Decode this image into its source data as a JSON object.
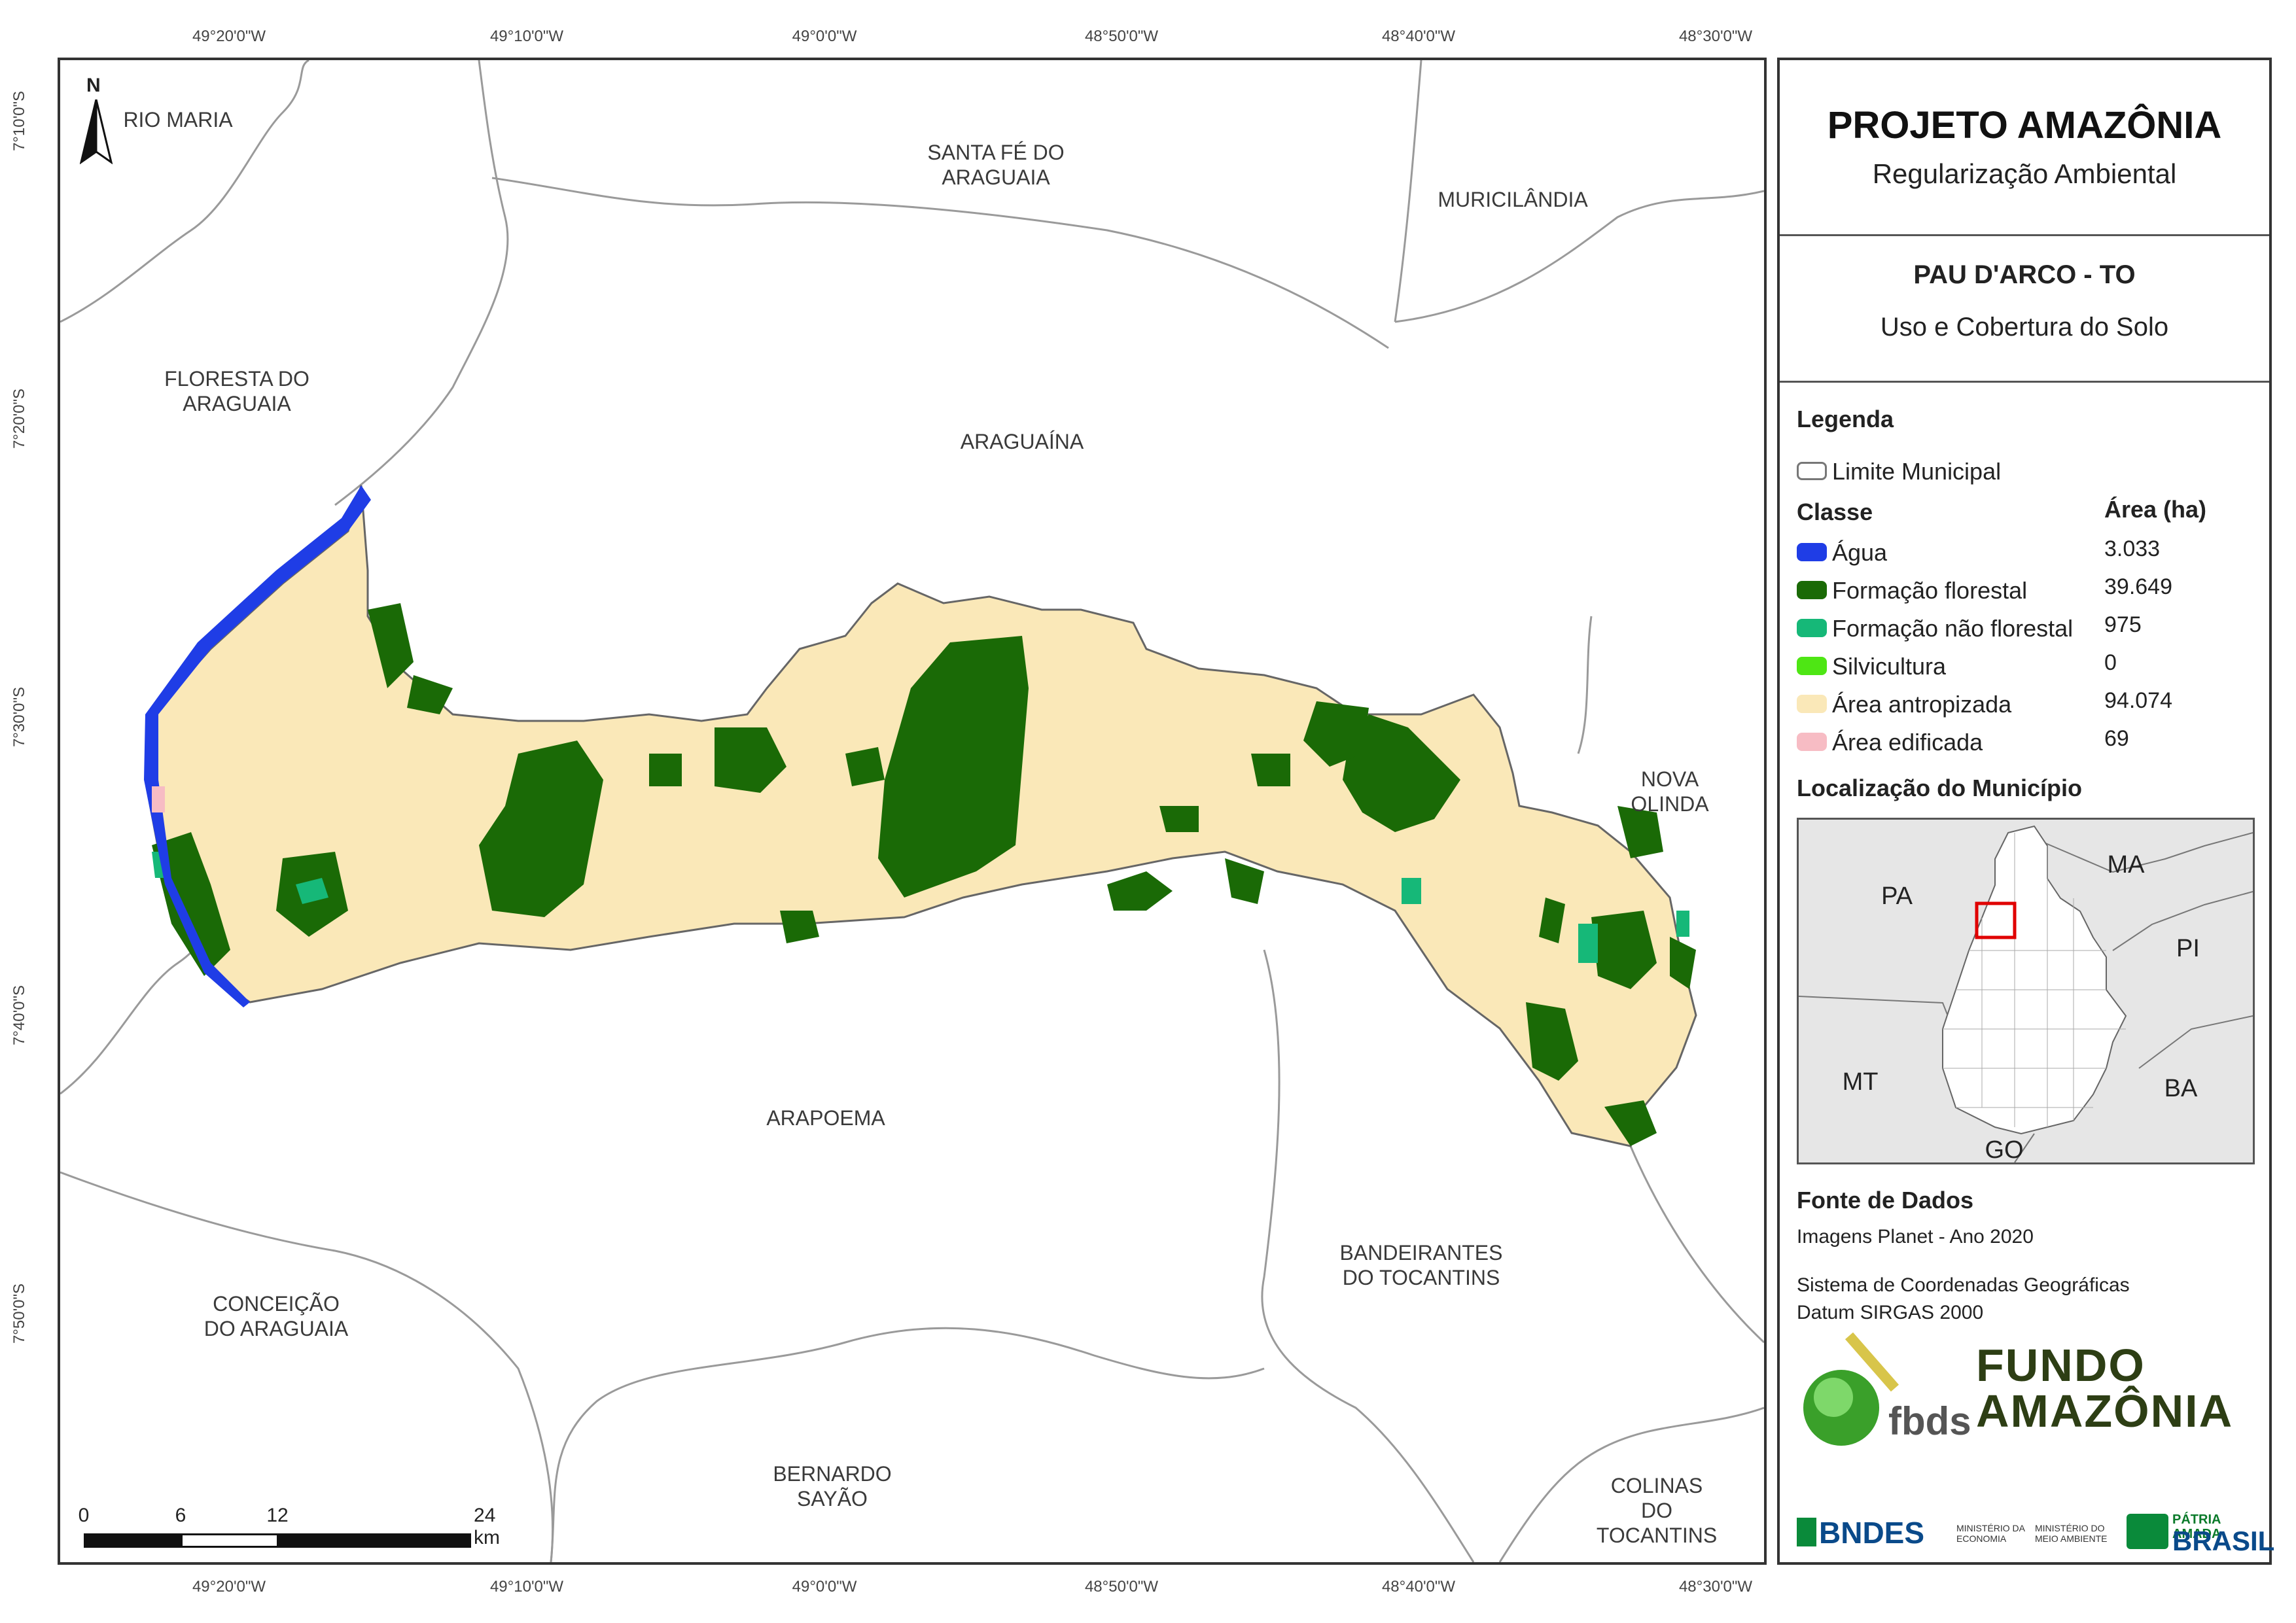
{
  "colors": {
    "agua": "#1f3de6",
    "formacao_florestal": "#1a6a06",
    "formacao_nao_florestal": "#16b878",
    "silvicultura": "#4ee614",
    "area_antropizada": "#fae8b8",
    "area_edificada": "#f7bcc4",
    "limite_municipal": "#9a9a9a",
    "locator_highlight": "#e00000"
  },
  "map": {
    "north_letter": "N",
    "municipalities": [
      {
        "id": "rio-maria",
        "name": "RIO MARIA"
      },
      {
        "id": "santa-fe",
        "name": "SANTA FÉ DO\nARAGUAIA"
      },
      {
        "id": "muricilandia",
        "name": "MURICILÂNDIA"
      },
      {
        "id": "floresta",
        "name": "FLORESTA DO\nARAGUAIA"
      },
      {
        "id": "araguaina",
        "name": "ARAGUAÍNA"
      },
      {
        "id": "nova-olinda",
        "name": "NOVA OLINDA"
      },
      {
        "id": "arapoema",
        "name": "ARAPOEMA"
      },
      {
        "id": "bandeirantes",
        "name": "BANDEIRANTES\nDO TOCANTINS"
      },
      {
        "id": "conceicao",
        "name": "CONCEIÇÃO\nDO ARAGUAIA"
      },
      {
        "id": "bernardo",
        "name": "BERNARDO\nSAYÃO"
      },
      {
        "id": "colinas",
        "name": "COLINAS DO\nTOCANTINS"
      }
    ],
    "lon_ticks": [
      "49°20'0\"W",
      "49°10'0\"W",
      "49°0'0\"W",
      "48°50'0\"W",
      "48°40'0\"W",
      "48°30'0\"W"
    ],
    "lat_ticks": [
      "7°10'0\"S",
      "7°20'0\"S",
      "7°30'0\"S",
      "7°40'0\"S",
      "7°50'0\"S"
    ],
    "scale": {
      "labels": [
        "0",
        "6",
        "12",
        "24 km"
      ]
    }
  },
  "panel": {
    "title": "PROJETO AMAZÔNIA",
    "subtitle": "Regularização Ambiental",
    "municipality": "PAU D'ARCO - TO",
    "theme": "Uso e Cobertura do Solo",
    "legend_heading": "Legenda",
    "limit_label": "Limite Municipal",
    "class_heading": "Classe",
    "area_heading": "Área (ha)",
    "classes": [
      {
        "label": "Água",
        "area": "3.033"
      },
      {
        "label": "Formação florestal",
        "area": "39.649"
      },
      {
        "label": "Formação não florestal",
        "area": "975"
      },
      {
        "label": "Silvicultura",
        "area": "0"
      },
      {
        "label": "Área antropizada",
        "area": "94.074"
      },
      {
        "label": "Área edificada",
        "area": "69"
      }
    ],
    "locator_heading": "Localização do Município",
    "locator_states": [
      "PA",
      "MA",
      "PI",
      "MT",
      "BA",
      "GO"
    ],
    "source_heading": "Fonte de Dados",
    "source_lines": [
      "Imagens Planet - Ano 2020",
      "Sistema de Coordenadas Geográficas",
      "Datum SIRGAS 2000"
    ],
    "logos": {
      "fbds": "fbds",
      "fundo": [
        "FUNDO",
        "AMAZÔNIA"
      ],
      "bndes": "BNDES",
      "ministerio_economia": "MINISTÉRIO DA\nECONOMIA",
      "ministerio_ambiente": "MINISTÉRIO DO\nMEIO AMBIENTE",
      "patria": "PÁTRIA AMADA",
      "brasil": "BRASIL"
    }
  }
}
